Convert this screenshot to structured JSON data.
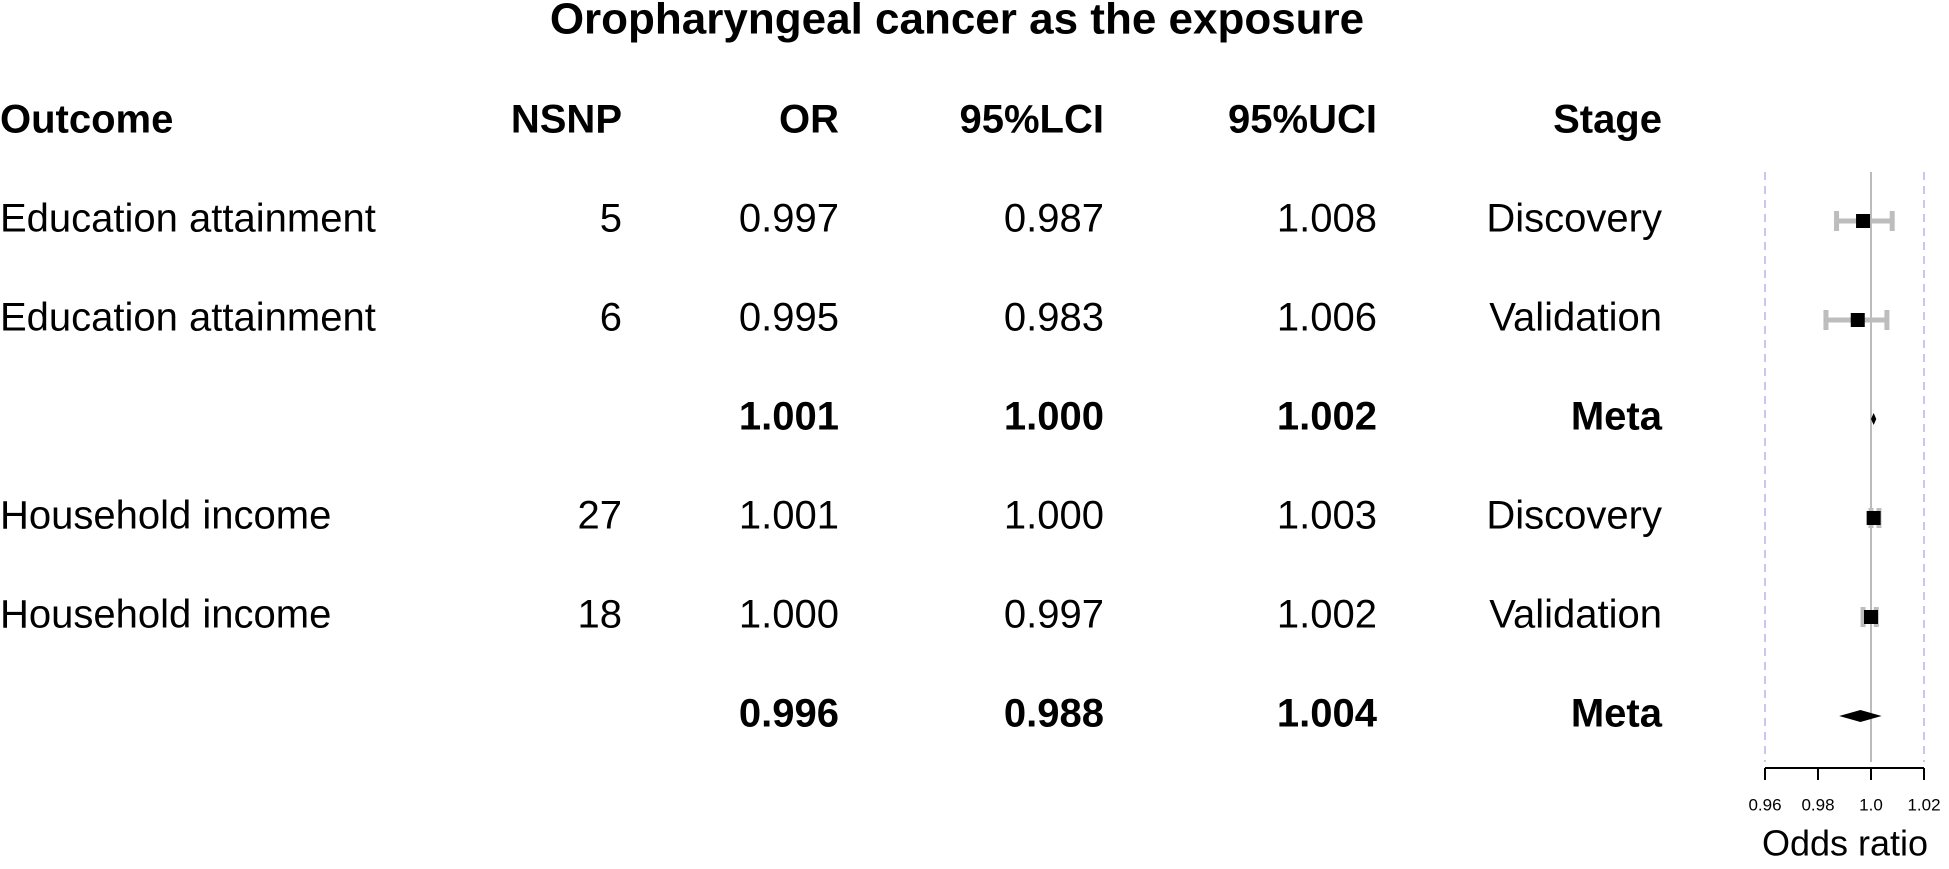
{
  "chart_data": {
    "type": "forest",
    "title": "Oropharyngeal cancer as the exposure",
    "outcome_header": "Outcome",
    "nsnp_header": "NSNP",
    "stage_header": "Stage",
    "outcomes": [
      "Education attainment",
      "Education attainment",
      null,
      "Household income",
      "Household income",
      null
    ],
    "nsnp": [
      5,
      6,
      null,
      27,
      18,
      null
    ],
    "stages": [
      "Discovery",
      "Validation",
      "Meta",
      "Discovery",
      "Validation",
      "Meta"
    ],
    "bold_rows": [
      false,
      false,
      true,
      false,
      false,
      true
    ],
    "series": [
      {
        "name": "OR",
        "values": [
          0.997,
          0.995,
          1.001,
          1.001,
          1,
          0.996
        ],
        "value_labels": [
          "0.997",
          "0.995",
          "1.001",
          "1.001",
          "1.000",
          "0.996"
        ]
      },
      {
        "name": "95%LCI",
        "values": [
          0.987,
          0.983,
          1,
          1,
          0.997,
          0.988
        ],
        "value_labels": [
          "0.987",
          "0.983",
          "1.000",
          "1.000",
          "0.997",
          "0.988"
        ]
      },
      {
        "name": "95%UCI",
        "values": [
          1.008,
          1.006,
          1.002,
          1.003,
          1.002,
          1.004
        ],
        "value_labels": [
          "1.008",
          "1.006",
          "1.002",
          "1.003",
          "1.002",
          "1.004"
        ]
      }
    ],
    "xlim": [
      0.96,
      1.02
    ],
    "xticks": [
      0.96,
      0.98,
      {
        "value": 1,
        "label": "1.0"
      },
      1.02
    ],
    "reference_line": 1,
    "xlabel": "Odds ratio",
    "ci_color": "#bdbdbd",
    "point_color": "#000000",
    "limit_line_color": "#c7c7f0"
  }
}
